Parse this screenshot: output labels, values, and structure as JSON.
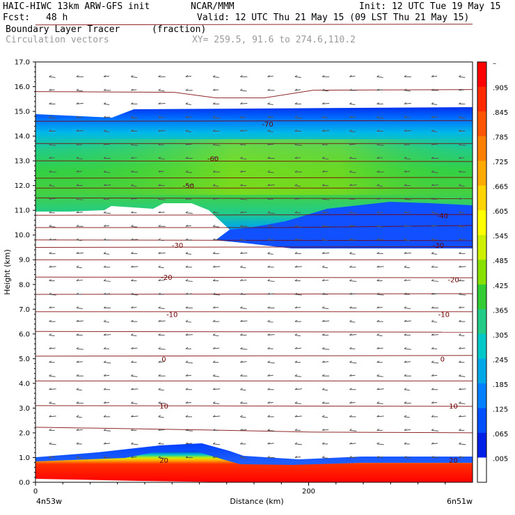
{
  "header": {
    "model": "HAIC-HIWC 13km ARW-GFS init",
    "center": "NCAR/MMM",
    "init": "Init: 12 UTC Tue 19 May 15",
    "fcst_label": "Fcst:",
    "fcst_value": "48 h",
    "valid": "Valid: 12 UTC Thu 21 May 15 (09 LST Thu 21 May 15)",
    "field": "Boundary Layer Tracer",
    "units": "(fraction)",
    "vectors": "Circulation vectors",
    "xy": "XY= 259.5, 91.6 to 274.6,110.2"
  },
  "chart_data": {
    "type": "heatmap",
    "title": "Boundary Layer Tracer",
    "ylabel": "Height (km)",
    "xlabel": "Distance (km)",
    "xlim": [
      0,
      320
    ],
    "ylim": [
      0.0,
      17.0
    ],
    "x_ticks": [
      "0",
      "200"
    ],
    "x_tick_values": [
      0,
      200
    ],
    "x_endpoint_labels": [
      "4n53w",
      "6n51w"
    ],
    "y_ticks": [
      "0.0",
      "1.0",
      "2.0",
      "3.0",
      "4.0",
      "5.0",
      "6.0",
      "7.0",
      "8.0",
      "9.0",
      "10.0",
      "11.0",
      "12.0",
      "13.0",
      "14.0",
      "15.0",
      "16.0",
      "17.0"
    ],
    "colorbar": {
      "labels": [
        "–",
        ".905",
        ".845",
        ".785",
        ".725",
        ".665",
        ".605",
        ".545",
        ".485",
        ".425",
        ".365",
        ".305",
        ".245",
        ".185",
        ".125",
        ".065",
        ".005"
      ],
      "colors": [
        "#ff0000",
        "#ff2a00",
        "#ff5500",
        "#ff8000",
        "#ffaa00",
        "#ffd400",
        "#ffff00",
        "#ccf000",
        "#88e000",
        "#33cc33",
        "#22cc88",
        "#00c8c8",
        "#00a8e8",
        "#0080ff",
        "#0050ff",
        "#0020e8",
        "#ffffff"
      ]
    },
    "contour_labels": [
      {
        "text": "-70",
        "x": 170,
        "y": 14.5
      },
      {
        "text": "-60",
        "x": 130,
        "y": 13.1
      },
      {
        "text": "-50",
        "x": 112,
        "y": 12.0
      },
      {
        "text": "-40",
        "x": 298,
        "y": 10.8
      },
      {
        "text": "-30",
        "x": 104,
        "y": 9.6
      },
      {
        "text": "-30",
        "x": 295,
        "y": 9.6
      },
      {
        "text": "-20",
        "x": 96,
        "y": 8.3
      },
      {
        "text": "-20",
        "x": 306,
        "y": 8.2
      },
      {
        "text": "-10",
        "x": 100,
        "y": 6.8
      },
      {
        "text": "-10",
        "x": 299,
        "y": 6.8
      },
      {
        "text": "0",
        "x": 94,
        "y": 5.0
      },
      {
        "text": "0",
        "x": 298,
        "y": 5.0
      },
      {
        "text": "10",
        "x": 94,
        "y": 3.1
      },
      {
        "text": "10",
        "x": 306,
        "y": 3.1
      },
      {
        "text": "20",
        "x": 94,
        "y": 0.9
      },
      {
        "text": "20",
        "x": 306,
        "y": 0.9
      }
    ]
  }
}
